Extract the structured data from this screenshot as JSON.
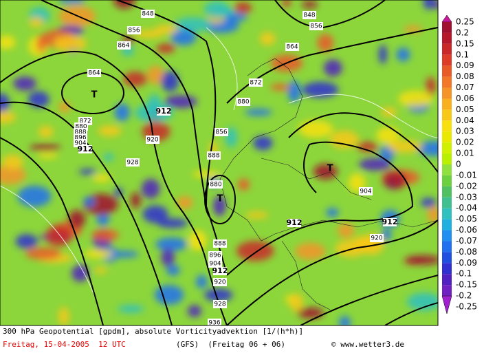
{
  "legend": {
    "levels": [
      {
        "value": 0.25,
        "color": "#c8189c"
      },
      {
        "value": 0.2,
        "color": "#a01030"
      },
      {
        "value": 0.15,
        "color": "#b4182a"
      },
      {
        "value": 0.1,
        "color": "#c82828"
      },
      {
        "value": 0.09,
        "color": "#dc3c28"
      },
      {
        "value": 0.08,
        "color": "#e85a28"
      },
      {
        "value": 0.07,
        "color": "#f07828"
      },
      {
        "value": 0.06,
        "color": "#f49428"
      },
      {
        "value": 0.05,
        "color": "#f8b020"
      },
      {
        "value": 0.04,
        "color": "#f8c818"
      },
      {
        "value": 0.03,
        "color": "#f8e010"
      },
      {
        "value": 0.02,
        "color": "#e8e800"
      },
      {
        "value": 0.01,
        "color": "#d0f000"
      },
      {
        "value": 0,
        "color": "#b8f000"
      },
      {
        "value": -0.01,
        "color": "#90e040"
      },
      {
        "value": -0.02,
        "color": "#6cd040"
      },
      {
        "value": -0.03,
        "color": "#50c060"
      },
      {
        "value": -0.04,
        "color": "#40c090"
      },
      {
        "value": -0.05,
        "color": "#30c0c0"
      },
      {
        "value": -0.06,
        "color": "#20b0e0"
      },
      {
        "value": -0.07,
        "color": "#2090f0"
      },
      {
        "value": -0.08,
        "color": "#2070f0"
      },
      {
        "value": -0.09,
        "color": "#2050e0"
      },
      {
        "value": -0.1,
        "color": "#3030d0"
      },
      {
        "value": -0.15,
        "color": "#5020c0"
      },
      {
        "value": -0.2,
        "color": "#7020c0"
      },
      {
        "value": -0.25,
        "color": "#a020d0"
      }
    ]
  },
  "map": {
    "contour_labels": [
      848,
      856,
      864,
      864,
      872,
      880,
      888,
      896,
      904,
      912,
      920,
      928,
      856,
      888,
      880,
      888,
      896,
      904,
      912,
      920,
      928,
      936,
      872,
      880,
      864,
      848,
      856,
      912,
      904,
      912,
      920,
      912
    ],
    "lows": [
      "T",
      "T",
      "T"
    ]
  },
  "footer": {
    "title": "300 hPa Geopotential [gpdm], absolute Vorticityadvektion [1/(h*h)]",
    "date": "Freitag, 15-04-2005  12 UTC",
    "model": "(GFS)  (Freitag 06 + 06)",
    "credit": "© www.wetter3.de"
  }
}
